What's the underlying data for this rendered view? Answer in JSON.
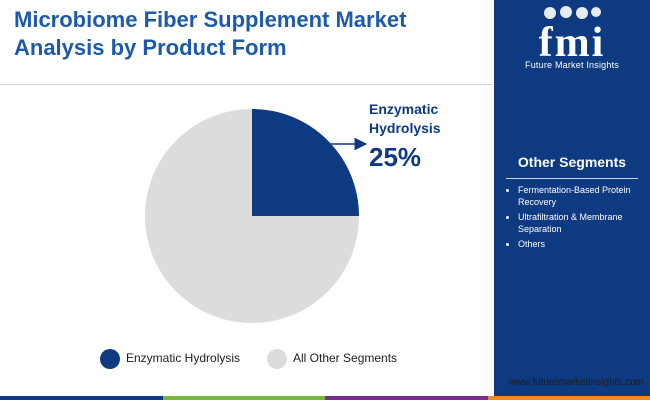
{
  "header": {
    "title": "Microbiome Fiber Supplement Market Analysis by Product Form"
  },
  "brand": {
    "logo_text": "fmi",
    "tagline": "Future Market Insights",
    "url": "www.futuremarketinsights.com",
    "colors": {
      "primary": "#0d3a80",
      "title": "#1f5aa8",
      "other": "#dcdcdc"
    }
  },
  "chart_data": {
    "type": "pie",
    "title": "Microbiome Fiber Supplement Market Analysis by Product Form",
    "slices": [
      {
        "label": "Enzymatic Hydrolysis",
        "value": 25,
        "color": "#0d3a80"
      },
      {
        "label": "All Other Segments",
        "value": 75,
        "color": "#dcdcdc"
      }
    ],
    "callout": {
      "label_line1": "Enzymatic",
      "label_line2": "Hydrolysis",
      "value_text": "25%"
    },
    "legend_position": "bottom"
  },
  "legend": [
    {
      "label": "Enzymatic Hydrolysis",
      "color": "#0d3a80"
    },
    {
      "label": "All Other Segments",
      "color": "#dcdcdc"
    }
  ],
  "sidebar": {
    "heading": "Other Segments",
    "items": [
      "Fermentation-Based Protein Recovery",
      "Ultrafiltration & Membrane Separation",
      "Others"
    ]
  },
  "footer_strip": [
    "#0d3a80",
    "#7ab642",
    "#7b2d8e",
    "#f08a24"
  ]
}
